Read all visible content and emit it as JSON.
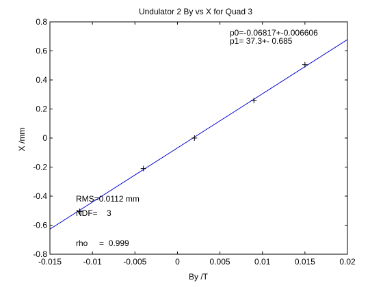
{
  "chart_data": {
    "type": "scatter",
    "title": "Undulator 2 By vs X for Quad 3",
    "xlabel": "By /T",
    "ylabel": "X /mm",
    "xlim": [
      -0.015,
      0.02
    ],
    "ylim": [
      -0.8,
      0.8
    ],
    "xticks": [
      "-0.015",
      "-0.01",
      "-0.005",
      "0",
      "0.005",
      "0.01",
      "0.015",
      "0.02"
    ],
    "yticks": [
      "-0.8",
      "-0.6",
      "-0.4",
      "-0.2",
      "0",
      "0.2",
      "0.4",
      "0.6",
      "0.8"
    ],
    "grid": false,
    "points": {
      "name": "",
      "x": [
        -0.0115,
        -0.004,
        0.002,
        0.009,
        0.015
      ],
      "y": [
        -0.505,
        -0.21,
        0.0,
        0.258,
        0.505
      ],
      "marker": "+",
      "color": "#000000"
    },
    "fit_line": {
      "p0": -0.06817,
      "p1": 37.3,
      "color": "#0000cc"
    },
    "annotations": {
      "fit_p0": "p0=-0.06817+-0.006606",
      "fit_p1": "p1=   37.3+- 0.685",
      "rms": "RMS=0.0112 mm",
      "ndf": "NDF=    3",
      "rho": "rho     =  0.999"
    }
  }
}
